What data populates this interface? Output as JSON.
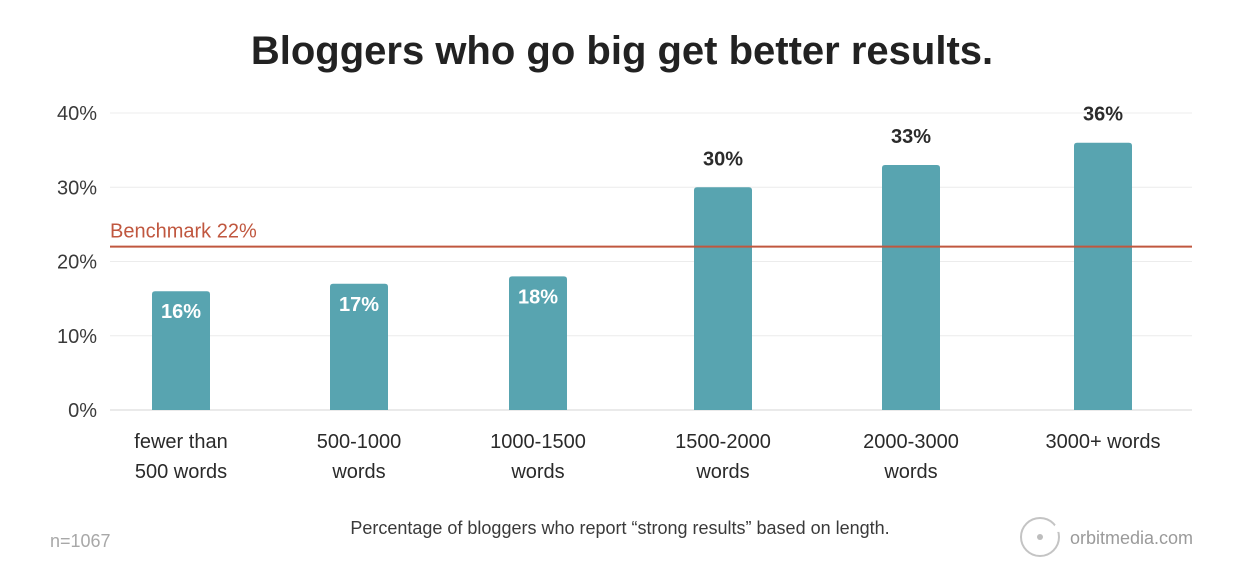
{
  "chart_data": {
    "type": "bar",
    "title": "Bloggers who go big get better results.",
    "categories": [
      [
        "fewer than",
        "500 words"
      ],
      [
        "500-1000",
        "words"
      ],
      [
        "1000-1500",
        "words"
      ],
      [
        "1500-2000",
        "words"
      ],
      [
        "2000-3000",
        "words"
      ],
      [
        "3000+ words"
      ]
    ],
    "values": [
      16,
      17,
      18,
      30,
      33,
      36
    ],
    "value_labels": [
      "16%",
      "17%",
      "18%",
      "30%",
      "33%",
      "36%"
    ],
    "ylim": [
      0,
      40
    ],
    "yticks": [
      0,
      10,
      20,
      30,
      40
    ],
    "ytick_labels": [
      "0%",
      "10%",
      "20%",
      "30%",
      "40%"
    ],
    "grid": true,
    "benchmark": {
      "value": 22,
      "label": "Benchmark 22%",
      "color": "#c0573f"
    },
    "bar_color": "#58a4b0",
    "caption": "Percentage of bloggers who report “strong results” based on length.",
    "sample_note": "n=1067",
    "source": "orbitmedia.com"
  }
}
